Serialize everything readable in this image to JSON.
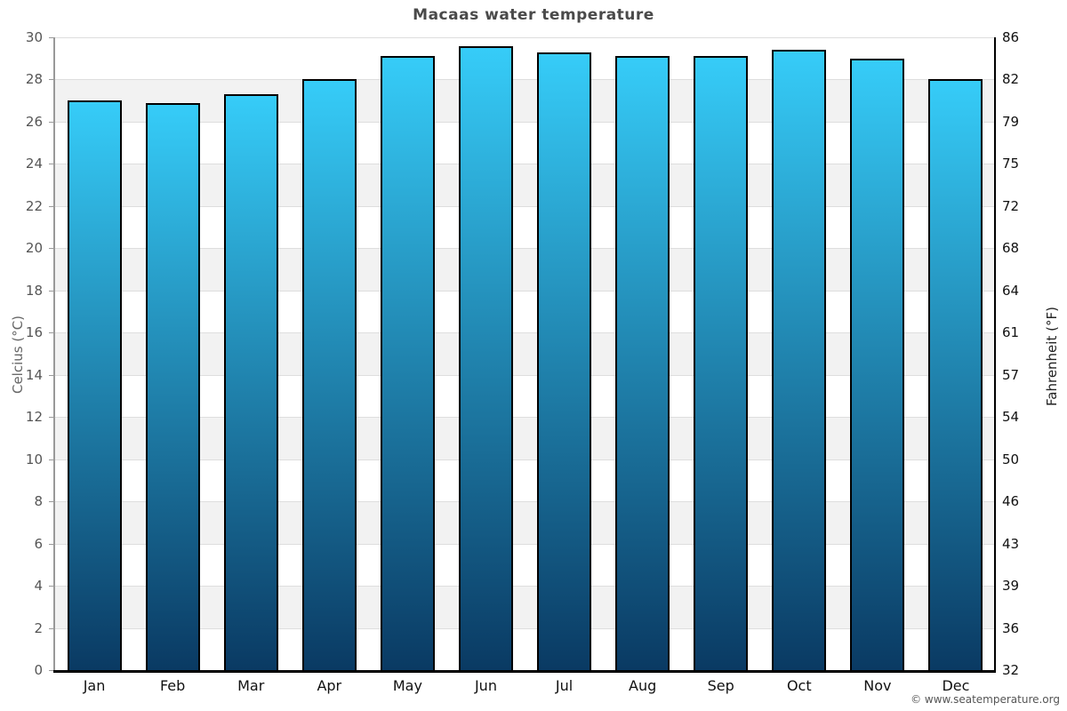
{
  "title": "Macaas water temperature",
  "footer": {
    "copyright": "© www.seatemperature.org"
  },
  "axes": {
    "left_label": "Celcius (°C)",
    "right_label": "Fahrenheit (°F)"
  },
  "colors": {
    "bar_gradient_top": "#36ccf8",
    "bar_gradient_bottom": "#0a3a63",
    "bar_border": "#000000",
    "band_white": "#ffffff",
    "band_gray": "#f2f2f2",
    "gridline": "#dedede",
    "title_text": "#4a4a4a"
  },
  "chart_data": {
    "type": "bar",
    "title": "Macaas water temperature",
    "categories": [
      "Jan",
      "Feb",
      "Mar",
      "Apr",
      "May",
      "Jun",
      "Jul",
      "Aug",
      "Sep",
      "Oct",
      "Nov",
      "Dec"
    ],
    "values": [
      27.0,
      26.9,
      27.3,
      28.0,
      29.1,
      29.6,
      29.3,
      29.1,
      29.1,
      29.4,
      29.0,
      28.0
    ],
    "values_unit": "°C",
    "xlabel": "",
    "ylabel_left": "Celcius (°C)",
    "ylabel_right": "Fahrenheit (°F)",
    "ylim_left": [
      0,
      30
    ],
    "yticks_left": [
      0,
      2,
      4,
      6,
      8,
      10,
      12,
      14,
      16,
      18,
      20,
      22,
      24,
      26,
      28,
      30
    ],
    "yticks_right_labels": [
      "32",
      "36",
      "39",
      "43",
      "46",
      "50",
      "54",
      "57",
      "61",
      "64",
      "68",
      "72",
      "75",
      "79",
      "82",
      "86"
    ],
    "grid": true,
    "legend": false,
    "background_bands_alternating": true
  }
}
